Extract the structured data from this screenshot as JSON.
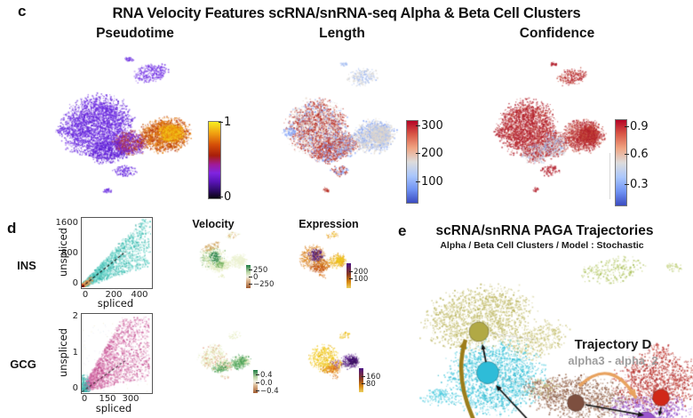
{
  "figure": {
    "panel_c": {
      "label": "c",
      "title": "RNA Velocity Features scRNA/snRNA-seq Alpha & Beta Cell Clusters",
      "plots": [
        {
          "name": "Pseudotime",
          "colorbar": {
            "ticks": [
              "1",
              "0"
            ]
          }
        },
        {
          "name": "Length",
          "colorbar": {
            "ticks": [
              "300",
              "200",
              "100"
            ]
          }
        },
        {
          "name": "Confidence",
          "colorbar": {
            "ticks": [
              "0.9",
              "0.6",
              "0.3"
            ]
          }
        }
      ]
    },
    "panel_d": {
      "label": "d",
      "columns": [
        "Velocity",
        "Expression"
      ],
      "rows": [
        {
          "gene": "INS",
          "scatter": {
            "xlabel": "spliced",
            "ylabel": "unspliced",
            "xticks": [
              "0",
              "200",
              "400"
            ],
            "yticks": [
              "1600",
              "800",
              "0"
            ]
          },
          "velocity_cb": [
            "250",
            "0",
            "−250"
          ],
          "expression_cb": [
            "200",
            "100"
          ]
        },
        {
          "gene": "GCG",
          "scatter": {
            "xlabel": "spliced",
            "ylabel": "unspliced",
            "xticks": [
              "0",
              "150",
              "300"
            ],
            "yticks": [
              "2",
              "1",
              "0"
            ]
          },
          "velocity_cb": [
            "0.4",
            "0.0",
            "−0.4"
          ],
          "expression_cb": [
            "160",
            "80"
          ]
        }
      ]
    },
    "panel_e": {
      "label": "e",
      "title": "scRNA/snRNA PAGA Trajectories",
      "subtitle": "Alpha / Beta Cell Clusters / Model : Stochastic",
      "annotation": {
        "title": "Trajectory D",
        "subtitle": "alpha3 - alpha_2"
      }
    }
  },
  "colors": {
    "accent_purple": "#6a2ce0",
    "accent_orange": "#e8820a",
    "accent_yellow": "#f2ce1b",
    "coolwarm_red": "#b40426",
    "coolwarm_blue": "#3b4cc0",
    "ins_points_teal": "#35bdae",
    "gcg_points_magenta": "#d468a8",
    "velocity_green": "#17753d",
    "velocity_pale": "#dfe8b4",
    "expression_purple": "#4a1284",
    "expression_gold": "#ecba10",
    "cluster_olive": "#b1a945",
    "cluster_cyan": "#2ebcd8",
    "cluster_brown": "#7d4f3f",
    "cluster_red": "#d02818",
    "cluster_purple": "#9a55cc",
    "cluster_green": "#b7ca6e",
    "arrow_olive": "#9c7d1a",
    "arrow_orange": "#e8a25e",
    "annotation_gray": "#9e9e9e"
  },
  "chart_data": [
    {
      "id": "c_pseudotime",
      "type": "scatter",
      "subtype": "umap_feature",
      "title": "Pseudotime",
      "colormap": "dark→violet→red→orange→yellow",
      "colorbar_ticks": [
        "1",
        "0"
      ],
      "value_range": [
        0,
        1
      ],
      "summary": "Left (alpha) lobe ≈0.1–0.35 (violet); central bridge ≈0.5–0.7 (red); right (beta) lobe ≈0.75–1.0 (orange with yellow core); small violet satellite cluster at top"
    },
    {
      "id": "c_length",
      "type": "scatter",
      "subtype": "umap_feature",
      "title": "Length",
      "colormap": "coolwarm blue→white→red",
      "colorbar_ticks": [
        "300",
        "200",
        "100"
      ],
      "value_range": [
        50,
        320
      ],
      "summary": "High length ≈250–300 (red) concentrated in center-left lobe and lower bridge; right lobe mostly ≈100–180 (blue/gray); satellite cluster pale blue"
    },
    {
      "id": "c_confidence",
      "type": "scatter",
      "subtype": "umap_feature",
      "title": "Confidence",
      "colormap": "coolwarm blue→white→red",
      "colorbar_ticks": [
        "0.9",
        "0.6",
        "0.3"
      ],
      "value_range": [
        0.2,
        0.95
      ],
      "summary": "Confidence ≈0.9 (red) over nearly all clusters; scattered low values ≈0.3–0.6 (pale/blue) in the central bridge"
    },
    {
      "id": "d_ins_phase",
      "type": "scatter",
      "title": "INS phase portrait",
      "xlabel": "spliced",
      "ylabel": "unspliced",
      "xticks": [
        0,
        200,
        400
      ],
      "yticks": [
        0,
        800,
        1600
      ],
      "xlim": [
        0,
        460
      ],
      "ylim": [
        0,
        1700
      ],
      "fit_line": {
        "style": "dashed",
        "from": [
          0,
          0
        ],
        "to": [
          290,
          875
        ]
      },
      "points": "dense teal cloud fanning along the diagonal; small orange cluster and red dot near origin"
    },
    {
      "id": "d_ins_velocity",
      "type": "scatter",
      "subtype": "umap_feature",
      "title": "Velocity",
      "colorbar_ticks": [
        "250",
        "0",
        "−250"
      ],
      "summary": "mostly near 0 (pale yellow-green); strong dark-green patch upper-center-left; tan stripe along top edge of left lobe"
    },
    {
      "id": "d_ins_expression",
      "type": "scatter",
      "subtype": "umap_feature",
      "title": "Expression",
      "colorbar_ticks": [
        "200",
        "100"
      ],
      "summary": "high (dark purple) patch upper-center-left; orange left lobe; gold/yellow right lobe"
    },
    {
      "id": "d_gcg_phase",
      "type": "scatter",
      "title": "GCG phase portrait",
      "xlabel": "spliced",
      "ylabel": "unspliced",
      "xticks": [
        0,
        150,
        300
      ],
      "yticks": [
        0,
        1,
        2
      ],
      "xlim": [
        0,
        380
      ],
      "ylim": [
        0,
        2.1
      ],
      "fit_line": {
        "style": "dashed",
        "from": [
          0,
          0
        ],
        "to": [
          235,
          0.85
        ]
      },
      "points": "broad magenta/pink cloud; dense teal cluster near origin"
    },
    {
      "id": "d_gcg_velocity",
      "type": "scatter",
      "subtype": "umap_feature",
      "title": "Velocity",
      "colorbar_ticks": [
        "0.4",
        "0.0",
        "−0.4"
      ],
      "summary": "pale yellow-green overall; green patches in right lobe and lower bridge; salmon speckles in left lobe"
    },
    {
      "id": "d_gcg_expression",
      "type": "scatter",
      "subtype": "umap_feature",
      "title": "Expression",
      "colorbar_ticks": [
        "160",
        "80"
      ],
      "summary": "yellow/gold left (alpha) lobe = high GCG; dark purple right (beta) lobe = low; orange bridge"
    },
    {
      "id": "e_paga",
      "type": "scatter",
      "subtype": "umap_paga",
      "title": "scRNA/snRNA PAGA Trajectories",
      "subtitle": "Alpha / Beta Cell Clusters / Model : Stochastic",
      "clusters": [
        {
          "name": "olive",
          "color": "#b1a945"
        },
        {
          "name": "cyan",
          "color": "#2ebcd8"
        },
        {
          "name": "brown",
          "color": "#7d4f3f"
        },
        {
          "name": "red",
          "color": "#d02818"
        },
        {
          "name": "purple",
          "color": "#9a55cc"
        },
        {
          "name": "green satellite",
          "color": "#b7ca6e"
        }
      ],
      "annotation": "Trajectory D : alpha3 - alpha_2",
      "arrows": [
        "thick olive arrow upward through cyan cluster into olive node",
        "black arrow cyan node → olive node",
        "black arrow from lower edge → cyan node",
        "black arrow brown node → purple node",
        "short black arrow red node → purple area",
        "orange curved arrow from brown cluster over to purple cluster"
      ]
    }
  ]
}
